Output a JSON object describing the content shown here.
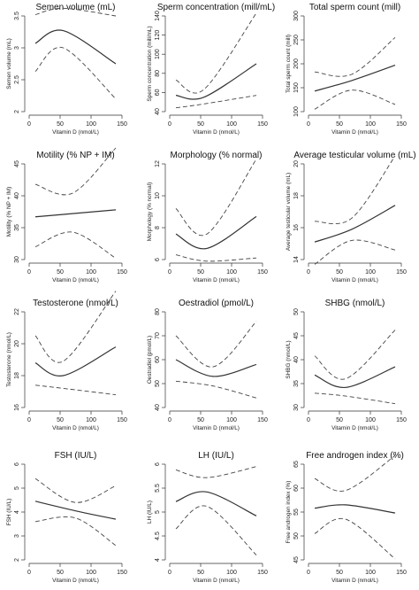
{
  "chart_data": [
    {
      "type": "line",
      "title": "Semen volume (mL)",
      "xlabel": "Vitamin D (nmol/L)",
      "ylabel": "Semen volume (mL)",
      "xlim": [
        0,
        150
      ],
      "ylim": [
        2,
        3.5
      ],
      "xticks": [
        0,
        50,
        100,
        150
      ],
      "yticks": [
        2,
        2.5,
        3,
        3.5
      ],
      "x": [
        10,
        55,
        140
      ],
      "series": [
        {
          "values": [
            3.07,
            3.27,
            2.75
          ]
        },
        {
          "values": [
            3.52,
            3.62,
            3.5
          ]
        },
        {
          "values": [
            2.63,
            3.0,
            2.2
          ]
        }
      ]
    },
    {
      "type": "line",
      "title": "Sperm concentration (mill/mL)",
      "xlabel": "Vitamin D (nmol/L)",
      "ylabel": "Sperm concentration (mill/mL)",
      "xlim": [
        0,
        150
      ],
      "ylim": [
        40,
        140
      ],
      "xticks": [
        0,
        50,
        100,
        150
      ],
      "yticks": [
        40,
        60,
        80,
        100,
        120,
        140
      ],
      "x": [
        10,
        55,
        140
      ],
      "series": [
        {
          "values": [
            57,
            55,
            90
          ]
        },
        {
          "values": [
            73,
            63,
            143
          ]
        },
        {
          "values": [
            44,
            48,
            57
          ]
        }
      ]
    },
    {
      "type": "line",
      "title": "Total sperm count (mill)",
      "xlabel": "Vitamin D (nmol/L)",
      "ylabel": "Total sperm count (mill)",
      "xlim": [
        0,
        150
      ],
      "ylim": [
        100,
        300
      ],
      "xticks": [
        0,
        50,
        100,
        150
      ],
      "yticks": [
        100,
        150,
        200,
        250,
        300
      ],
      "x": [
        10,
        70,
        140
      ],
      "series": [
        {
          "values": [
            143,
            165,
            197
          ]
        },
        {
          "values": [
            183,
            178,
            255
          ]
        },
        {
          "values": [
            105,
            145,
            115
          ]
        }
      ]
    },
    {
      "type": "line",
      "title": "Motility (% NP + IM)",
      "xlabel": "Vitamin D (nmol/L)",
      "ylabel": "Motility (% NP + IM)",
      "xlim": [
        0,
        150
      ],
      "ylim": [
        30,
        45
      ],
      "xticks": [
        0,
        50,
        100,
        150
      ],
      "yticks": [
        30,
        35,
        40,
        45
      ],
      "x": [
        10,
        70,
        140
      ],
      "series": [
        {
          "values": [
            36.7,
            37.2,
            37.8
          ]
        },
        {
          "values": [
            41.8,
            40.4,
            47.5
          ]
        },
        {
          "values": [
            32.0,
            34.3,
            30.2
          ]
        }
      ]
    },
    {
      "type": "line",
      "title": "Morphology (% normal)",
      "xlabel": "Vitamin D (nmol/L)",
      "ylabel": "Morphology (% normal)",
      "xlim": [
        0,
        150
      ],
      "ylim": [
        6,
        12
      ],
      "xticks": [
        0,
        50,
        100,
        150
      ],
      "yticks": [
        6,
        8,
        10,
        12
      ],
      "x": [
        10,
        60,
        140
      ],
      "series": [
        {
          "values": [
            7.6,
            6.7,
            8.7
          ]
        },
        {
          "values": [
            9.2,
            7.6,
            12.3
          ]
        },
        {
          "values": [
            6.3,
            5.9,
            6.1
          ]
        }
      ]
    },
    {
      "type": "line",
      "title": "Average testicular volume (mL)",
      "xlabel": "Vitamin D (nmol/L)",
      "ylabel": "Average testicular volume (mL)",
      "xlim": [
        0,
        150
      ],
      "ylim": [
        14,
        20
      ],
      "xticks": [
        0,
        50,
        100,
        150
      ],
      "yticks": [
        14,
        16,
        18,
        20
      ],
      "x": [
        10,
        70,
        140
      ],
      "series": [
        {
          "values": [
            15.1,
            15.9,
            17.4
          ]
        },
        {
          "values": [
            16.4,
            16.6,
            20.5
          ]
        },
        {
          "values": [
            13.7,
            15.2,
            14.6
          ]
        }
      ]
    },
    {
      "type": "line",
      "title": "Testosterone (nmol/L)",
      "xlabel": "Vitamin D (nmol/L)",
      "ylabel": "Testosterone (nmol/L)",
      "xlim": [
        0,
        150
      ],
      "ylim": [
        16,
        22
      ],
      "xticks": [
        0,
        50,
        100,
        150
      ],
      "yticks": [
        16,
        18,
        20,
        22
      ],
      "x": [
        10,
        55,
        140
      ],
      "series": [
        {
          "values": [
            18.8,
            18.0,
            19.8
          ]
        },
        {
          "values": [
            20.5,
            18.9,
            23.3
          ]
        },
        {
          "values": [
            17.4,
            17.2,
            16.8
          ]
        }
      ]
    },
    {
      "type": "line",
      "title": "Oestradiol (pmol/L)",
      "xlabel": "Vitamin D (nmol/L)",
      "ylabel": "Oestradiol (pmol/L)",
      "xlim": [
        0,
        150
      ],
      "ylim": [
        40,
        80
      ],
      "xticks": [
        0,
        50,
        100,
        150
      ],
      "yticks": [
        40,
        50,
        60,
        70,
        80
      ],
      "x": [
        10,
        70,
        140
      ],
      "series": [
        {
          "values": [
            60,
            53,
            58
          ]
        },
        {
          "values": [
            70,
            57,
            76
          ]
        },
        {
          "values": [
            51,
            49,
            44
          ]
        }
      ]
    },
    {
      "type": "line",
      "title": "SHBG (nmol/L)",
      "xlabel": "Vitamin D (nmol/L)",
      "ylabel": "SHBG (nmol/L)",
      "xlim": [
        0,
        150
      ],
      "ylim": [
        30,
        50
      ],
      "xticks": [
        0,
        50,
        100,
        150
      ],
      "yticks": [
        30,
        35,
        40,
        45,
        50
      ],
      "x": [
        10,
        60,
        140
      ],
      "series": [
        {
          "values": [
            36.8,
            34.2,
            38.5
          ]
        },
        {
          "values": [
            40.8,
            36.0,
            46.2
          ]
        },
        {
          "values": [
            33.0,
            32.4,
            30.8
          ]
        }
      ]
    },
    {
      "type": "line",
      "title": "FSH (IU/L)",
      "xlabel": "Vitamin D (nmol/L)",
      "ylabel": "FSH (IU/L)",
      "xlim": [
        0,
        150
      ],
      "ylim": [
        2,
        6
      ],
      "xticks": [
        0,
        50,
        100,
        150
      ],
      "yticks": [
        2,
        3,
        4,
        5,
        6
      ],
      "x": [
        10,
        75,
        140
      ],
      "series": [
        {
          "values": [
            4.45,
            4.05,
            3.7
          ]
        },
        {
          "values": [
            5.4,
            4.4,
            5.1
          ]
        },
        {
          "values": [
            3.6,
            3.75,
            2.6
          ]
        }
      ]
    },
    {
      "type": "line",
      "title": "LH (IU/L)",
      "xlabel": "Vitamin D (nmol/L)",
      "ylabel": "LH (IU/L)",
      "xlim": [
        0,
        150
      ],
      "ylim": [
        4,
        6
      ],
      "xticks": [
        0,
        50,
        100,
        150
      ],
      "yticks": [
        4,
        4.5,
        5,
        5.5,
        6
      ],
      "x": [
        10,
        60,
        140
      ],
      "series": [
        {
          "values": [
            5.22,
            5.42,
            4.92
          ]
        },
        {
          "values": [
            5.88,
            5.72,
            5.95
          ]
        },
        {
          "values": [
            4.65,
            5.12,
            4.1
          ]
        }
      ]
    },
    {
      "type": "line",
      "title": "Free androgen index (%)",
      "xlabel": "Vitamin D (nmol/L)",
      "ylabel": "Free androgen index (%)",
      "xlim": [
        0,
        150
      ],
      "ylim": [
        45,
        65
      ],
      "xticks": [
        0,
        50,
        100,
        150
      ],
      "yticks": [
        45,
        50,
        55,
        60,
        65
      ],
      "x": [
        10,
        60,
        140
      ],
      "series": [
        {
          "values": [
            55.8,
            56.5,
            54.8
          ]
        },
        {
          "values": [
            62.0,
            59.5,
            66.8
          ]
        },
        {
          "values": [
            50.5,
            53.5,
            45.2
          ]
        }
      ]
    }
  ]
}
